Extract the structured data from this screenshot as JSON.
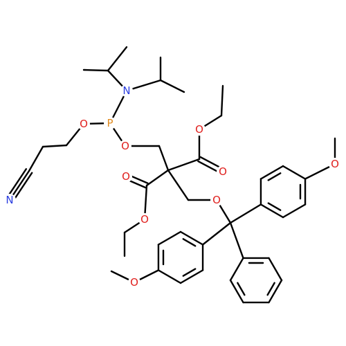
{
  "atoms": [
    {
      "label": "N"
    },
    {
      "label": "P"
    },
    {
      "label": "O"
    },
    {
      "label": "O"
    },
    {
      "label": "N"
    },
    {
      "label": "O"
    },
    {
      "label": "O"
    },
    {
      "label": "O"
    },
    {
      "label": "O"
    },
    {
      "label": "O"
    },
    {
      "label": "O"
    },
    {
      "label": "O"
    }
  ]
}
